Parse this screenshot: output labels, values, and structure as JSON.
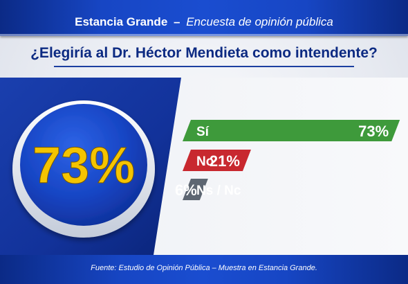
{
  "header": {
    "title": "Estancia Grande",
    "separator": "–",
    "subtitle": "Encuesta de opinión pública"
  },
  "question": "¿Elegiría al Dr. Héctor Mendieta como intendente?",
  "highlight": {
    "value": "73%"
  },
  "footer": {
    "source": "Fuente: Estudio de Opinión Pública – Muestra en Estancia Grande."
  },
  "colors": {
    "navy": "#0c2a82",
    "yes": "#3e9a3b",
    "no": "#c8282f",
    "nsnc": "#5d6672",
    "highlight": "#f5c400"
  },
  "chart_data": {
    "type": "bar",
    "title": "¿Elegiría al Dr. Héctor Mendieta como intendente?",
    "categories": [
      "Sí",
      "No",
      "Ns / Nc"
    ],
    "values": [
      73,
      21,
      6
    ],
    "value_labels": [
      "73%",
      "21%",
      "6%"
    ],
    "unit": "%",
    "xlim": [
      0,
      100
    ],
    "colors": [
      "#3e9a3b",
      "#c8282f",
      "#5d6672"
    ]
  }
}
